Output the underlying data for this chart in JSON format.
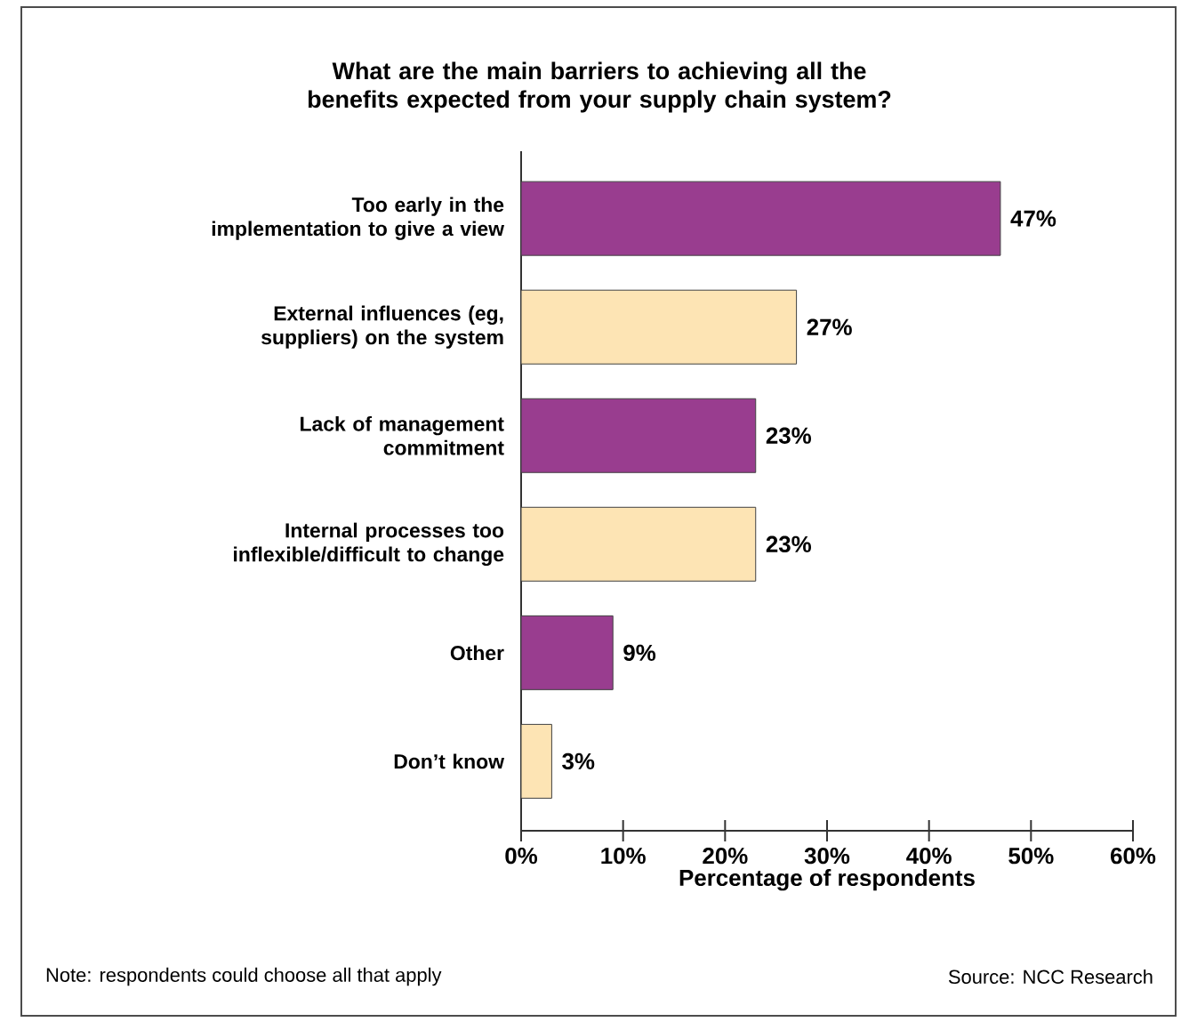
{
  "chart_data": {
    "type": "bar",
    "orientation": "horizontal",
    "title": "What are the main barriers to achieving all the benefits expected from your supply chain system?",
    "categories": [
      "Too early in the implementation to give a view",
      "External influences (eg, suppliers) on the system",
      "Lack of management commitment",
      "Internal processes too inflexible/difficult to change",
      "Other",
      "Don’t know"
    ],
    "values": [
      47,
      27,
      23,
      23,
      9,
      3
    ],
    "colors": [
      "#993d8f",
      "#fde4b4",
      "#993d8f",
      "#fde4b4",
      "#993d8f",
      "#fde4b4"
    ],
    "value_labels": [
      "47%",
      "27%",
      "23%",
      "23%",
      "9%",
      "3%"
    ],
    "xlabel": "Percentage of respondents",
    "xlim": [
      0,
      60
    ],
    "xticks": [
      {
        "value": 0,
        "label": "0%"
      },
      {
        "value": 10,
        "label": "10%"
      },
      {
        "value": 20,
        "label": "20%"
      },
      {
        "value": 30,
        "label": "30%"
      },
      {
        "value": 40,
        "label": "40%"
      },
      {
        "value": 50,
        "label": "50%"
      },
      {
        "value": 60,
        "label": "60%"
      }
    ],
    "annotations": [
      "Note: respondents could choose all that apply",
      "Source: NCC Research"
    ]
  }
}
